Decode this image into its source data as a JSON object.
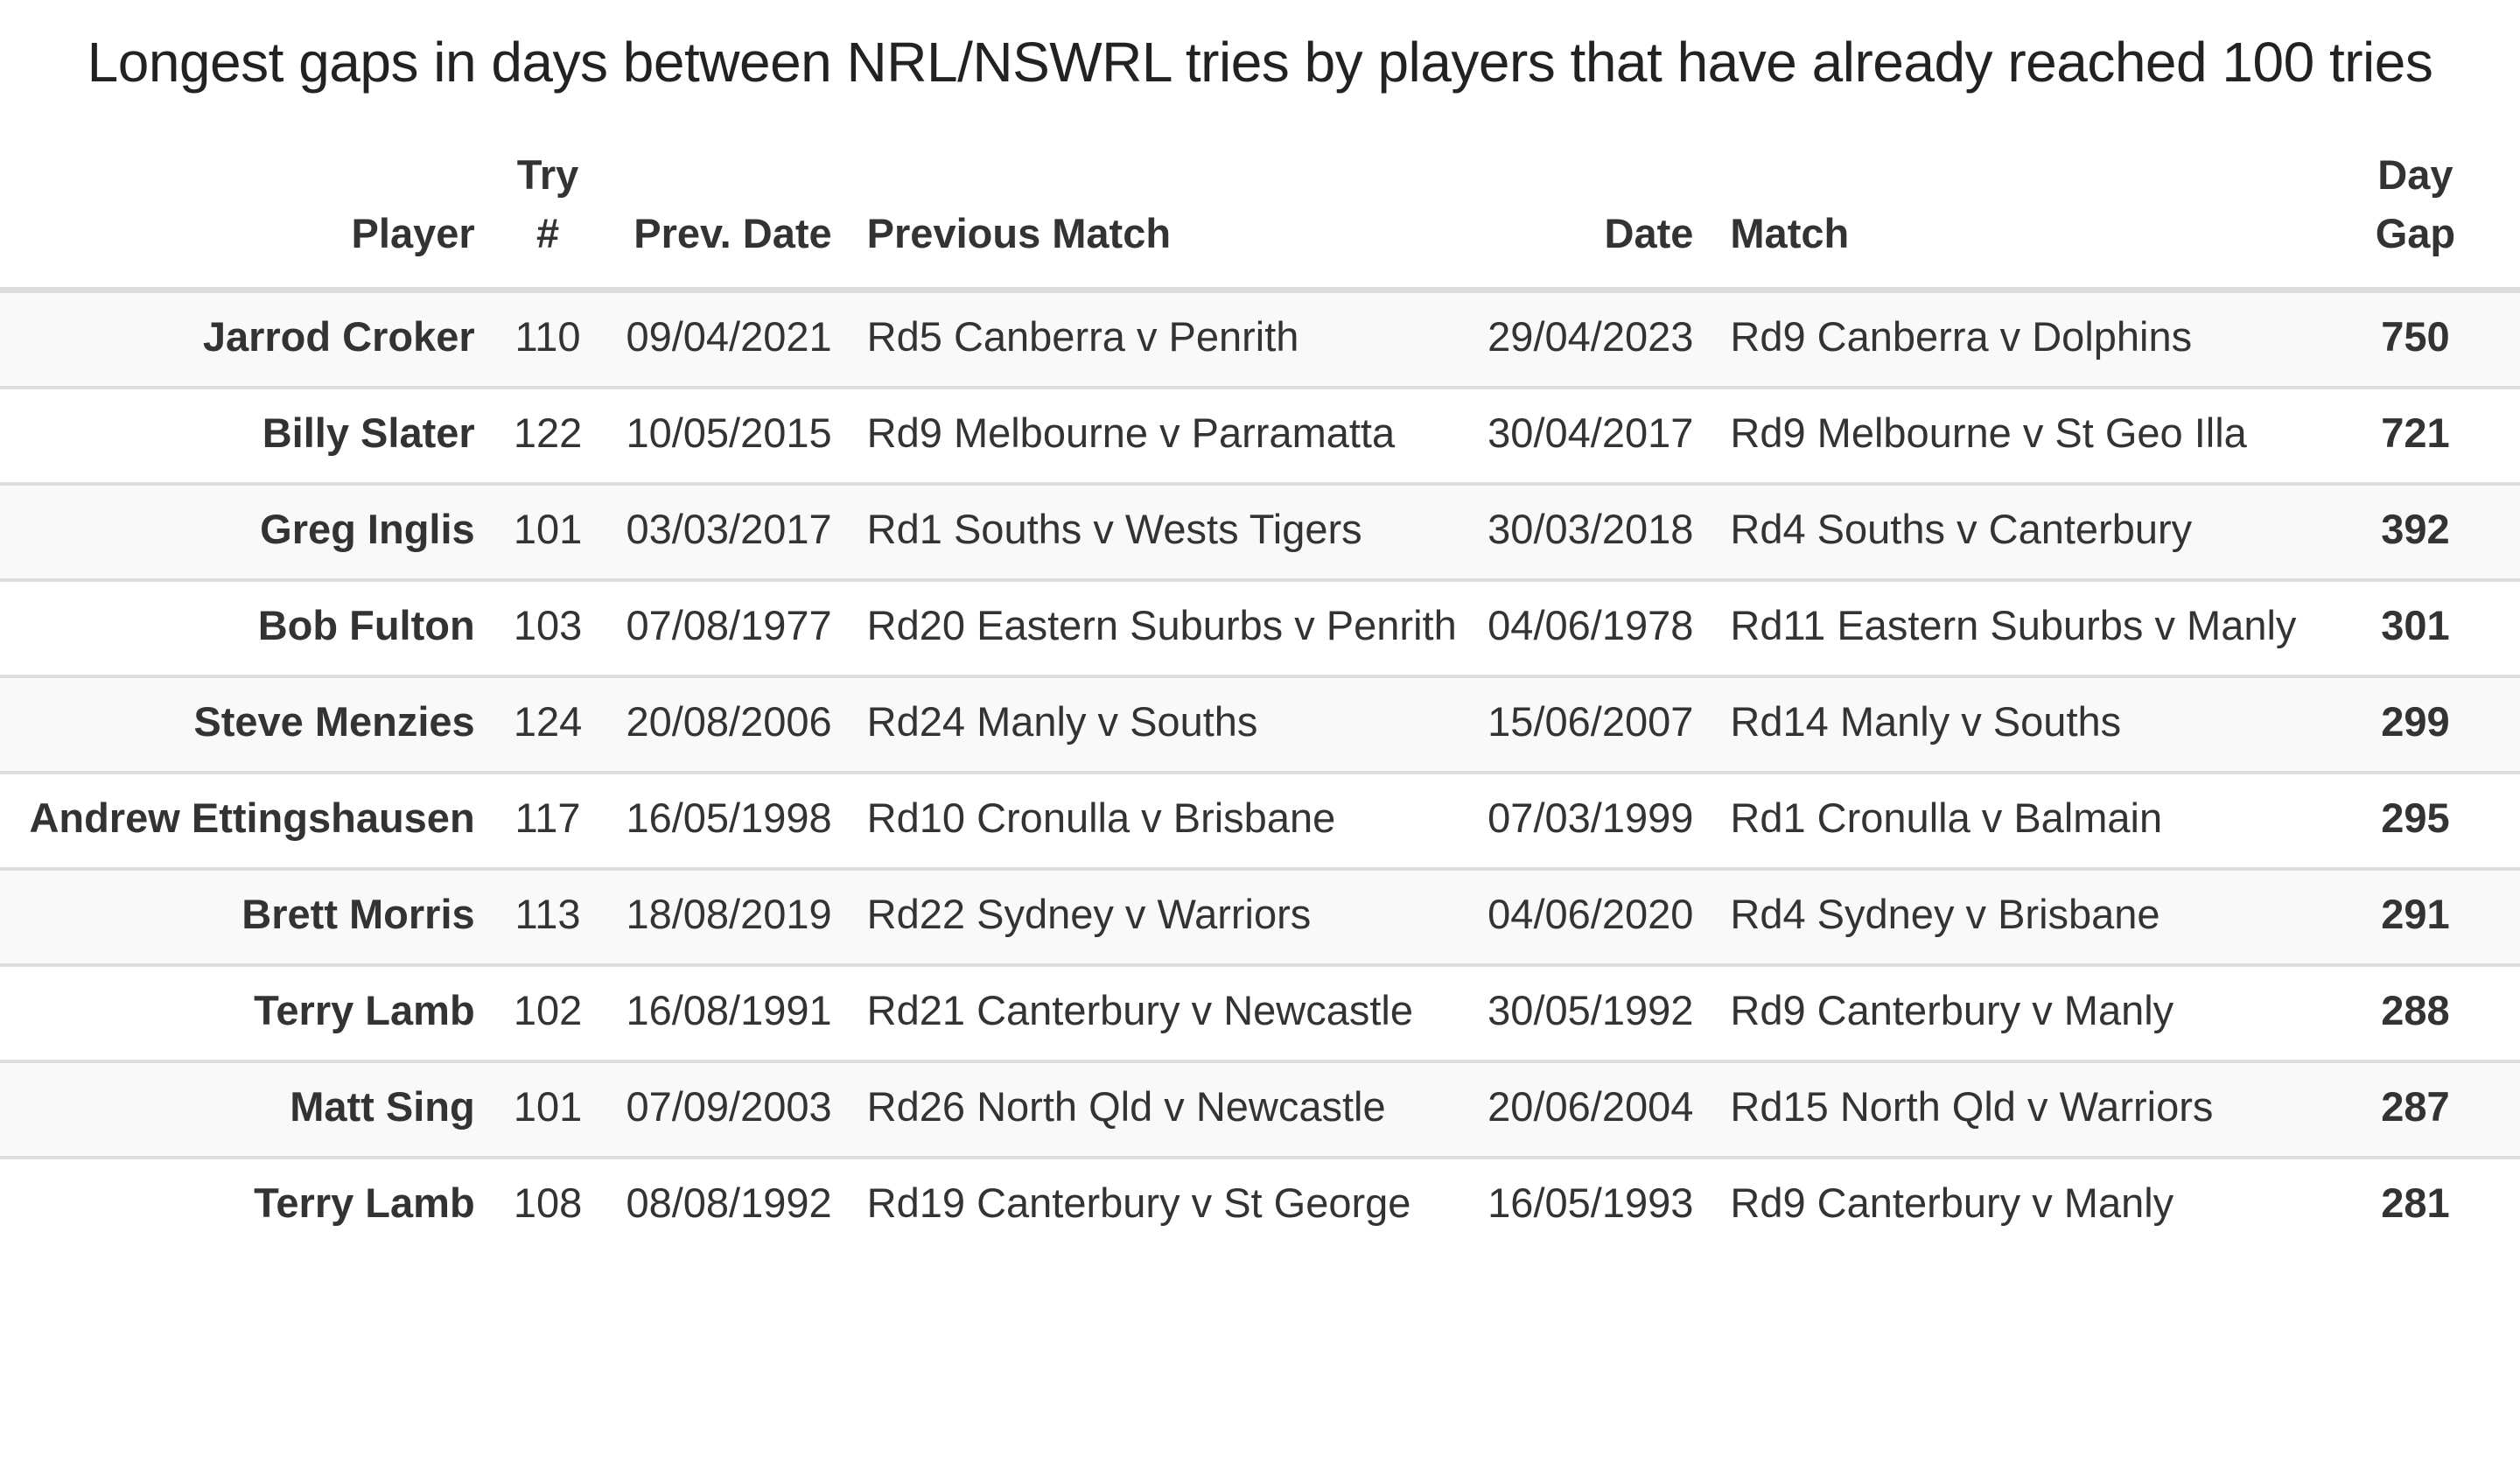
{
  "title": "Longest gaps in days between NRL/NSWRL tries by players that have already reached 100 tries",
  "columns": {
    "player": "Player",
    "try_line1": "Try",
    "try_line2": "#",
    "prev_date": "Prev. Date",
    "prev_match": "Previous Match",
    "date": "Date",
    "match": "Match",
    "gap_line1": "Day",
    "gap_line2": "Gap"
  },
  "rows": [
    {
      "player": "Jarrod Croker",
      "try_no": "110",
      "prev_date": "09/04/2021",
      "prev_match": "Rd5 Canberra v Penrith",
      "date": "29/04/2023",
      "match": "Rd9 Canberra v Dolphins",
      "gap": "750"
    },
    {
      "player": "Billy Slater",
      "try_no": "122",
      "prev_date": "10/05/2015",
      "prev_match": "Rd9 Melbourne v Parramatta",
      "date": "30/04/2017",
      "match": "Rd9 Melbourne v St Geo Illa",
      "gap": "721"
    },
    {
      "player": "Greg Inglis",
      "try_no": "101",
      "prev_date": "03/03/2017",
      "prev_match": "Rd1 Souths v Wests Tigers",
      "date": "30/03/2018",
      "match": "Rd4 Souths v Canterbury",
      "gap": "392"
    },
    {
      "player": "Bob Fulton",
      "try_no": "103",
      "prev_date": "07/08/1977",
      "prev_match": "Rd20 Eastern Suburbs v Penrith",
      "date": "04/06/1978",
      "match": "Rd11 Eastern Suburbs v Manly",
      "gap": "301"
    },
    {
      "player": "Steve Menzies",
      "try_no": "124",
      "prev_date": "20/08/2006",
      "prev_match": "Rd24 Manly v Souths",
      "date": "15/06/2007",
      "match": "Rd14 Manly v Souths",
      "gap": "299"
    },
    {
      "player": "Andrew Ettingshausen",
      "try_no": "117",
      "prev_date": "16/05/1998",
      "prev_match": "Rd10 Cronulla v Brisbane",
      "date": "07/03/1999",
      "match": "Rd1 Cronulla v Balmain",
      "gap": "295"
    },
    {
      "player": "Brett Morris",
      "try_no": "113",
      "prev_date": "18/08/2019",
      "prev_match": "Rd22 Sydney v Warriors",
      "date": "04/06/2020",
      "match": "Rd4 Sydney v Brisbane",
      "gap": "291"
    },
    {
      "player": "Terry Lamb",
      "try_no": "102",
      "prev_date": "16/08/1991",
      "prev_match": "Rd21 Canterbury v Newcastle",
      "date": "30/05/1992",
      "match": "Rd9 Canterbury v Manly",
      "gap": "288"
    },
    {
      "player": "Matt Sing",
      "try_no": "101",
      "prev_date": "07/09/2003",
      "prev_match": "Rd26 North Qld v Newcastle",
      "date": "20/06/2004",
      "match": "Rd15 North Qld v Warriors",
      "gap": "287"
    },
    {
      "player": "Terry Lamb",
      "try_no": "108",
      "prev_date": "08/08/1992",
      "prev_match": "Rd19 Canterbury v St George",
      "date": "16/05/1993",
      "match": "Rd9 Canterbury v Manly",
      "gap": "281"
    }
  ]
}
